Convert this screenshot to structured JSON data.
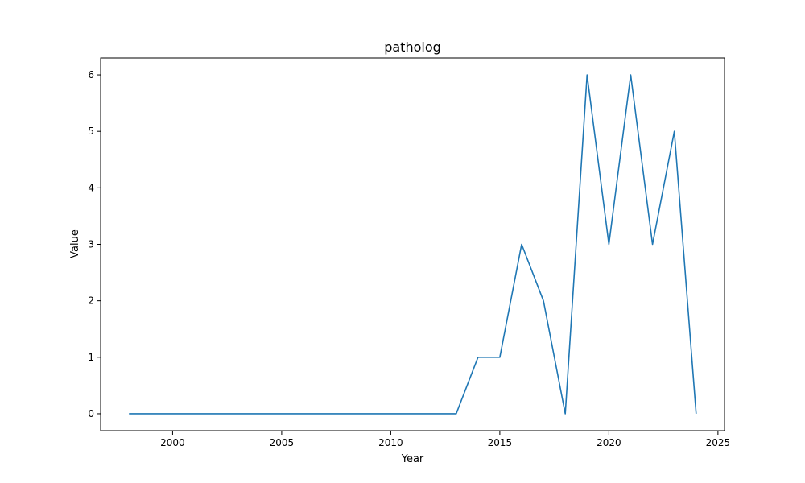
{
  "chart_data": {
    "type": "line",
    "title": "patholog",
    "xlabel": "Year",
    "ylabel": "Value",
    "x": [
      1998,
      1999,
      2000,
      2001,
      2002,
      2003,
      2004,
      2005,
      2006,
      2007,
      2008,
      2009,
      2010,
      2011,
      2012,
      2013,
      2014,
      2015,
      2016,
      2017,
      2018,
      2019,
      2020,
      2021,
      2022,
      2023,
      2024
    ],
    "series": [
      {
        "values": [
          0,
          0,
          0,
          0,
          0,
          0,
          0,
          0,
          0,
          0,
          0,
          0,
          0,
          0,
          0,
          0,
          1,
          1,
          3,
          2,
          0,
          6,
          3,
          6,
          3,
          5,
          0
        ],
        "color": "#1f77b4"
      }
    ],
    "xlim": [
      1996.7,
      2025.3
    ],
    "ylim": [
      -0.3,
      6.3
    ],
    "xticks": [
      2000,
      2005,
      2010,
      2015,
      2020,
      2025
    ],
    "yticks": [
      0,
      1,
      2,
      3,
      4,
      5,
      6
    ],
    "grid": false,
    "legend": "none"
  }
}
